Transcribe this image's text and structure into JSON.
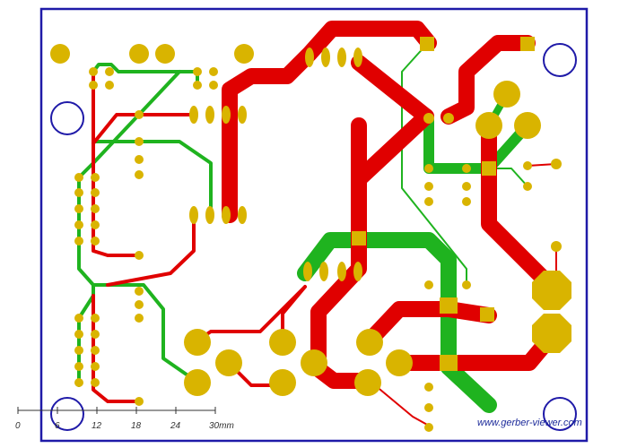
{
  "viewer": {
    "watermark": "www.gerber-viewer.com",
    "colors": {
      "board_outline": "#1f1aa8",
      "top_copper": "#e00000",
      "bottom_copper": "#1fb31f",
      "pads": "#d9b400",
      "thin_trace": "#c01010",
      "mount_hole": "#1f1aa8"
    },
    "scale_bar": {
      "labels": [
        "0",
        "6",
        "12",
        "18",
        "24",
        "30mm"
      ]
    },
    "icons": [
      "mount-hole-icon",
      "pad-icon",
      "via-icon"
    ]
  }
}
